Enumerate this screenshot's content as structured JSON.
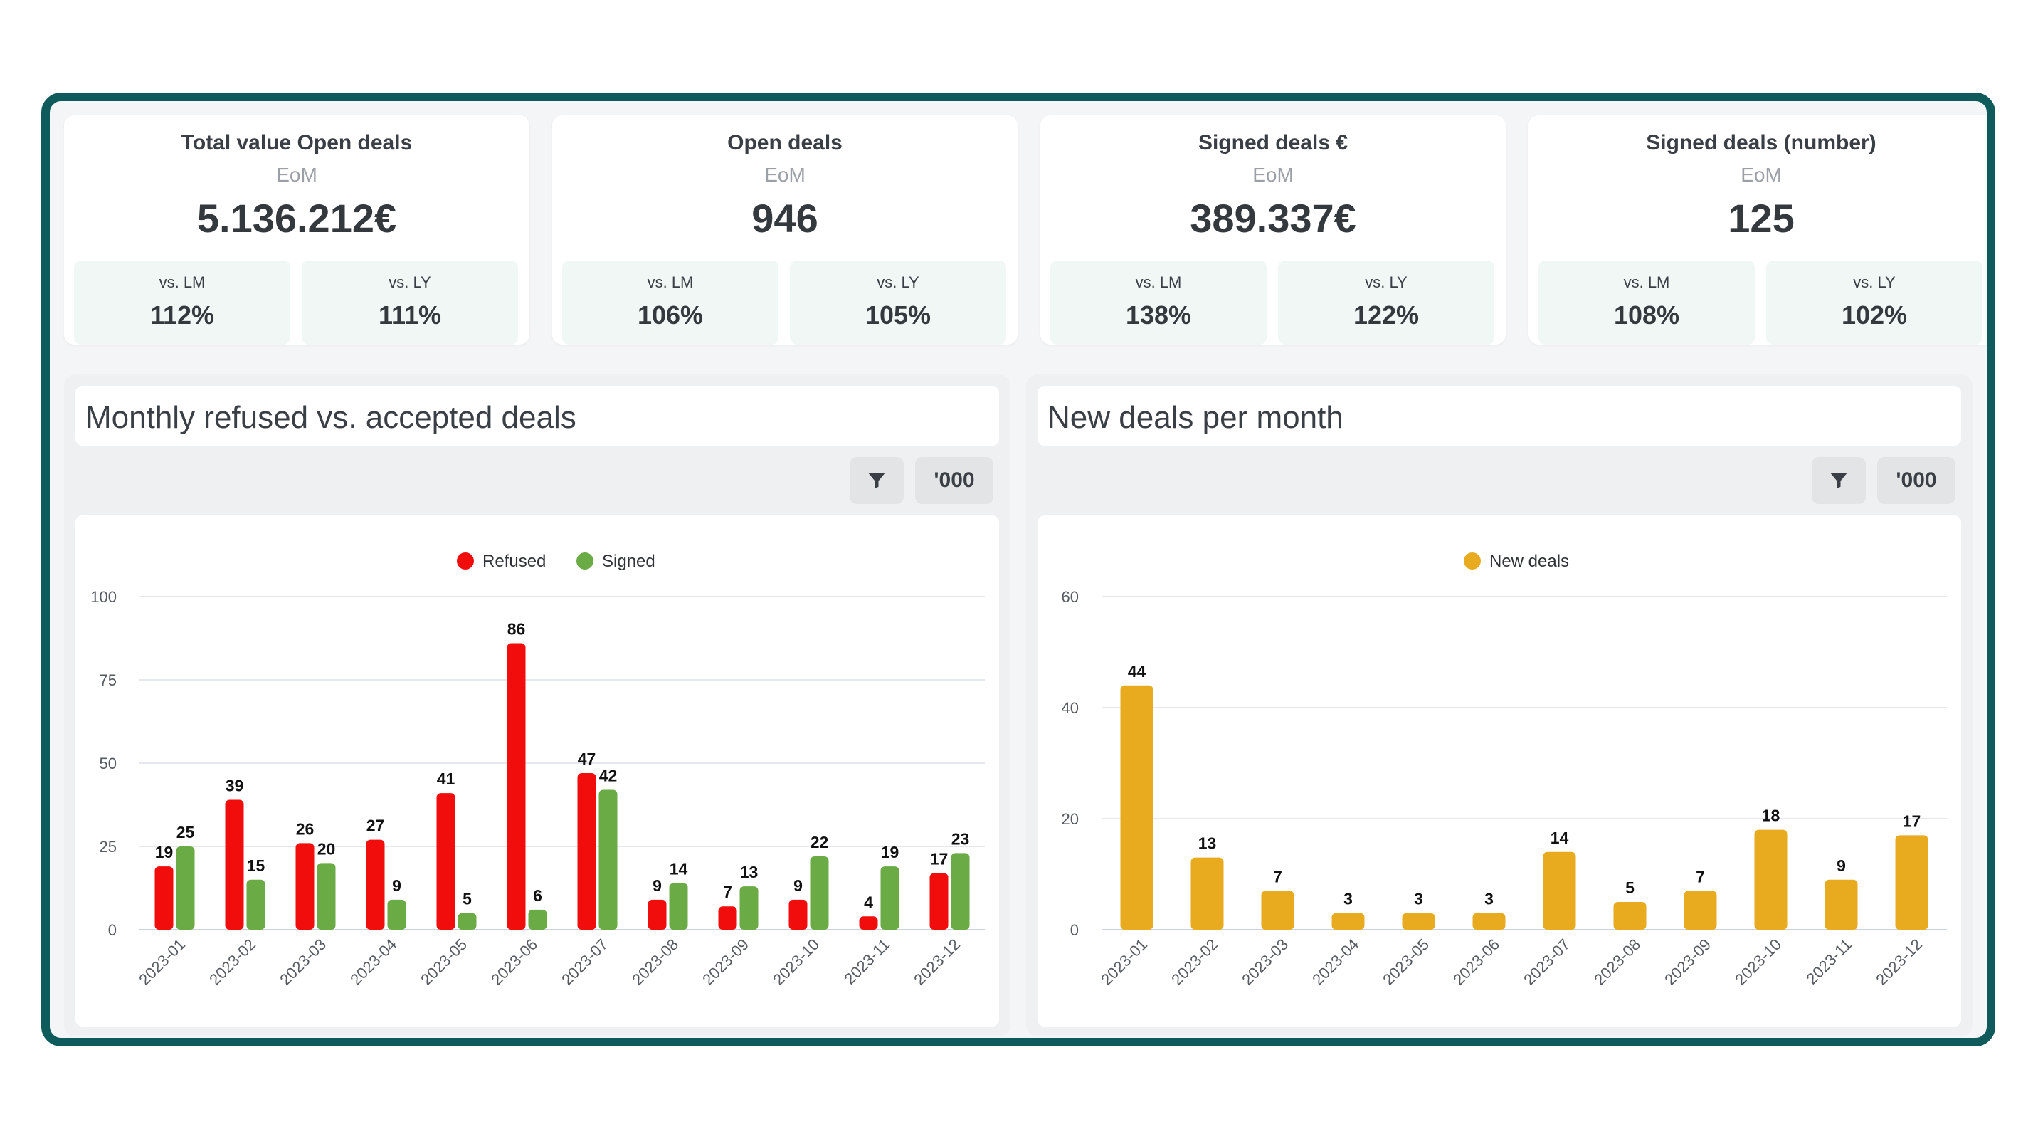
{
  "kpis": [
    {
      "title": "Total value Open deals",
      "sub": "EoM",
      "value": "5.136.212€",
      "lm_label": "vs. LM",
      "lm_value": "112%",
      "ly_label": "vs. LY",
      "ly_value": "111%"
    },
    {
      "title": "Open deals",
      "sub": "EoM",
      "value": "946",
      "lm_label": "vs. LM",
      "lm_value": "106%",
      "ly_label": "vs. LY",
      "ly_value": "105%"
    },
    {
      "title": "Signed deals €",
      "sub": "EoM",
      "value": "389.337€",
      "lm_label": "vs. LM",
      "lm_value": "138%",
      "ly_label": "vs. LY",
      "ly_value": "122%"
    },
    {
      "title": "Signed deals (number)",
      "sub": "EoM",
      "value": "125",
      "lm_label": "vs. LM",
      "lm_value": "108%",
      "ly_label": "vs. LY",
      "ly_value": "102%"
    }
  ],
  "panels": [
    {
      "title": "Monthly refused vs. accepted deals",
      "filter_icon": "filter-icon",
      "unit_label": "'000"
    },
    {
      "title": "New deals per month",
      "filter_icon": "filter-icon",
      "unit_label": "'000"
    }
  ],
  "colors": {
    "refused": "#f20d0d",
    "signed": "#6aab45",
    "new": "#e8ab20",
    "frame": "#0f5b5c"
  },
  "chart_data": [
    {
      "type": "bar",
      "title": "Monthly refused vs. accepted deals",
      "categories": [
        "2023-01",
        "2023-02",
        "2023-03",
        "2023-04",
        "2023-05",
        "2023-06",
        "2023-07",
        "2023-08",
        "2023-09",
        "2023-10",
        "2023-11",
        "2023-12"
      ],
      "series": [
        {
          "name": "Refused",
          "values": [
            19,
            39,
            26,
            27,
            41,
            86,
            47,
            9,
            7,
            9,
            4,
            17
          ]
        },
        {
          "name": "Signed",
          "values": [
            25,
            15,
            20,
            9,
            5,
            6,
            42,
            14,
            13,
            22,
            19,
            23
          ]
        }
      ],
      "ylim": [
        0,
        100
      ],
      "yticks": [
        0,
        25,
        50,
        75,
        100
      ],
      "legend": "top-center",
      "grid": true
    },
    {
      "type": "bar",
      "title": "New deals per month",
      "categories": [
        "2023-01",
        "2023-02",
        "2023-03",
        "2023-04",
        "2023-05",
        "2023-06",
        "2023-07",
        "2023-08",
        "2023-09",
        "2023-10",
        "2023-11",
        "2023-12"
      ],
      "series": [
        {
          "name": "New deals",
          "values": [
            44,
            13,
            7,
            3,
            3,
            3,
            14,
            5,
            7,
            18,
            9,
            17
          ]
        }
      ],
      "ylim": [
        0,
        60
      ],
      "yticks": [
        0,
        20,
        40,
        60
      ],
      "legend": "top-center",
      "grid": true
    }
  ]
}
